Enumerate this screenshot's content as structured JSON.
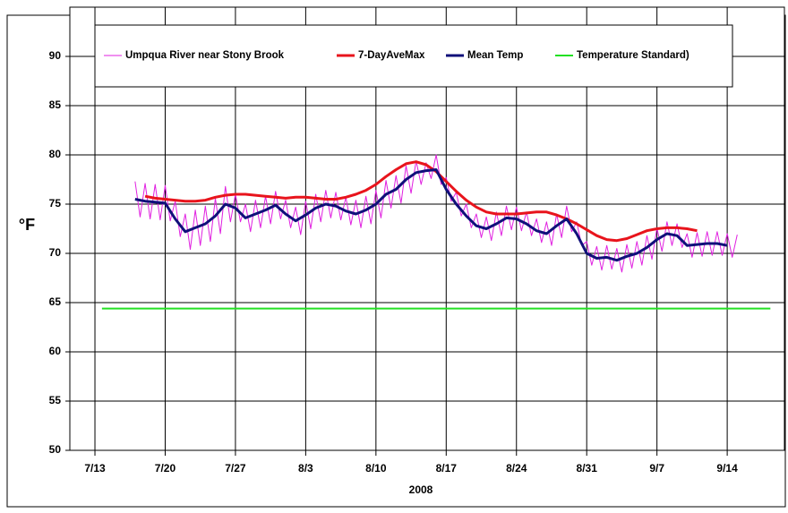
{
  "chart_data": {
    "type": "line",
    "x_label": "2008",
    "y_label": "°F",
    "xlim": [
      192.5,
      263.7
    ],
    "xticks": [
      {
        "value": 195,
        "label": "7/13"
      },
      {
        "value": 202,
        "label": "7/20"
      },
      {
        "value": 209,
        "label": "7/27"
      },
      {
        "value": 216,
        "label": "8/3"
      },
      {
        "value": 223,
        "label": "8/10"
      },
      {
        "value": 230,
        "label": "8/17"
      },
      {
        "value": 237,
        "label": "8/24"
      },
      {
        "value": 244,
        "label": "8/31"
      },
      {
        "value": 251,
        "label": "9/7"
      },
      {
        "value": 258,
        "label": "9/14"
      }
    ],
    "ylim": [
      50,
      95
    ],
    "yticks": [
      50,
      55,
      60,
      65,
      70,
      75,
      80,
      85,
      90
    ],
    "grid": true,
    "legend": "top",
    "series": [
      {
        "name": "Umpqua River near Stony Brook",
        "color": "#e020e0",
        "width": 1,
        "x": [
          199,
          199.5,
          200,
          200.5,
          201,
          201.5,
          202,
          202.5,
          203,
          203.5,
          204,
          204.5,
          205,
          205.5,
          206,
          206.5,
          207,
          207.5,
          208,
          208.5,
          209,
          209.5,
          210,
          210.5,
          211,
          211.5,
          212,
          212.5,
          213,
          213.5,
          214,
          214.5,
          215,
          215.5,
          216,
          216.5,
          217,
          217.5,
          218,
          218.5,
          219,
          219.5,
          220,
          220.5,
          221,
          221.5,
          222,
          222.5,
          223,
          223.5,
          224,
          224.5,
          225,
          225.5,
          226,
          226.5,
          227,
          227.5,
          228,
          228.5,
          229,
          229.5,
          230,
          230.5,
          231,
          231.5,
          232,
          232.5,
          233,
          233.5,
          234,
          234.5,
          235,
          235.5,
          236,
          236.5,
          237,
          237.5,
          238,
          238.5,
          239,
          239.5,
          240,
          240.5,
          241,
          241.5,
          242,
          242.5,
          243,
          243.5,
          244,
          244.5,
          245,
          245.5,
          246,
          246.5,
          247,
          247.5,
          248,
          248.5,
          249,
          249.5,
          250,
          250.5,
          251,
          251.5,
          252,
          252.5,
          253,
          253.5,
          254,
          254.5,
          255,
          255.5,
          256,
          256.5,
          257,
          257.5,
          258,
          258.5,
          259
        ],
        "values": [
          77.3,
          73.7,
          77.1,
          73.5,
          77.0,
          73.4,
          76.9,
          73.3,
          75.3,
          71.7,
          74.0,
          70.4,
          74.4,
          70.8,
          74.8,
          71.2,
          75.6,
          72.0,
          76.8,
          73.2,
          76.0,
          73.2,
          75.0,
          72.2,
          75.4,
          72.6,
          75.8,
          73.0,
          76.3,
          73.5,
          75.4,
          72.6,
          74.7,
          71.9,
          75.3,
          72.5,
          76.0,
          73.2,
          76.4,
          73.6,
          76.2,
          73.4,
          75.7,
          72.9,
          75.4,
          72.6,
          75.8,
          73.0,
          76.4,
          73.6,
          77.4,
          74.6,
          77.9,
          75.1,
          78.9,
          76.1,
          79.4,
          77.0,
          79.2,
          77.6,
          80.0,
          77.0,
          77.7,
          75.3,
          76.2,
          73.8,
          75.0,
          72.6,
          74.0,
          71.6,
          73.7,
          71.3,
          74.2,
          71.8,
          74.8,
          72.4,
          74.7,
          72.3,
          74.2,
          71.8,
          73.5,
          71.1,
          73.2,
          70.8,
          74.0,
          71.6,
          74.8,
          72.2,
          73.2,
          70.8,
          71.2,
          68.8,
          70.7,
          68.3,
          70.8,
          68.4,
          70.5,
          68.1,
          70.9,
          68.5,
          71.2,
          68.8,
          71.8,
          69.4,
          72.6,
          70.2,
          73.2,
          70.8,
          73.0,
          70.6,
          72.0,
          69.6,
          72.1,
          69.7,
          72.2,
          69.8,
          72.2,
          69.8,
          72.0,
          69.6,
          71.9
        ]
      },
      {
        "name": "7-DayAveMax",
        "color": "#e8141c",
        "width": 3,
        "x": [
          200,
          201,
          202,
          203,
          204,
          205,
          206,
          207,
          208,
          209,
          210,
          211,
          212,
          213,
          214,
          215,
          216,
          217,
          218,
          219,
          220,
          221,
          222,
          223,
          224,
          225,
          226,
          227,
          228,
          229,
          230,
          231,
          232,
          233,
          234,
          235,
          236,
          237,
          238,
          239,
          240,
          241,
          242,
          243,
          244,
          245,
          246,
          247,
          248,
          249,
          250,
          251,
          252,
          253,
          254,
          255
        ],
        "values": [
          75.8,
          75.6,
          75.5,
          75.4,
          75.3,
          75.3,
          75.4,
          75.7,
          75.9,
          76.0,
          76.0,
          75.9,
          75.8,
          75.7,
          75.6,
          75.7,
          75.7,
          75.6,
          75.5,
          75.5,
          75.7,
          76.0,
          76.4,
          77.0,
          77.8,
          78.5,
          79.1,
          79.3,
          79.0,
          78.3,
          77.3,
          76.3,
          75.4,
          74.7,
          74.2,
          74.0,
          74.0,
          74.0,
          74.1,
          74.2,
          74.2,
          73.9,
          73.5,
          73.0,
          72.4,
          71.8,
          71.4,
          71.3,
          71.5,
          71.9,
          72.3,
          72.5,
          72.6,
          72.6,
          72.5,
          72.3
        ]
      },
      {
        "name": "Mean Temp",
        "color": "#10107a",
        "width": 3,
        "x": [
          199,
          200,
          201,
          202,
          203,
          204,
          205,
          206,
          207,
          208,
          209,
          210,
          211,
          212,
          213,
          214,
          215,
          216,
          217,
          218,
          219,
          220,
          221,
          222,
          223,
          224,
          225,
          226,
          227,
          228,
          229,
          230,
          231,
          232,
          233,
          234,
          235,
          236,
          237,
          238,
          239,
          240,
          241,
          242,
          243,
          244,
          245,
          246,
          247,
          248,
          249,
          250,
          251,
          252,
          253,
          254,
          255,
          256,
          257,
          258
        ],
        "values": [
          75.5,
          75.3,
          75.2,
          75.1,
          73.5,
          72.2,
          72.6,
          73.0,
          73.8,
          75.0,
          74.6,
          73.6,
          74.0,
          74.4,
          74.9,
          74.0,
          73.3,
          73.9,
          74.6,
          75.0,
          74.8,
          74.3,
          74.0,
          74.4,
          75.0,
          76.0,
          76.5,
          77.5,
          78.2,
          78.4,
          78.5,
          76.5,
          75.0,
          73.8,
          72.8,
          72.5,
          73.0,
          73.6,
          73.5,
          73.0,
          72.3,
          72.0,
          72.8,
          73.5,
          72.0,
          70.0,
          69.5,
          69.6,
          69.3,
          69.7,
          70.0,
          70.6,
          71.4,
          72.0,
          71.8,
          70.8,
          70.9,
          71.0,
          71.0,
          70.8
        ]
      },
      {
        "name": "Temperature Standard)",
        "color": "#22e022",
        "width": 2,
        "x": [
          195.7,
          262.3
        ],
        "values": [
          64.4,
          64.4
        ]
      }
    ]
  }
}
